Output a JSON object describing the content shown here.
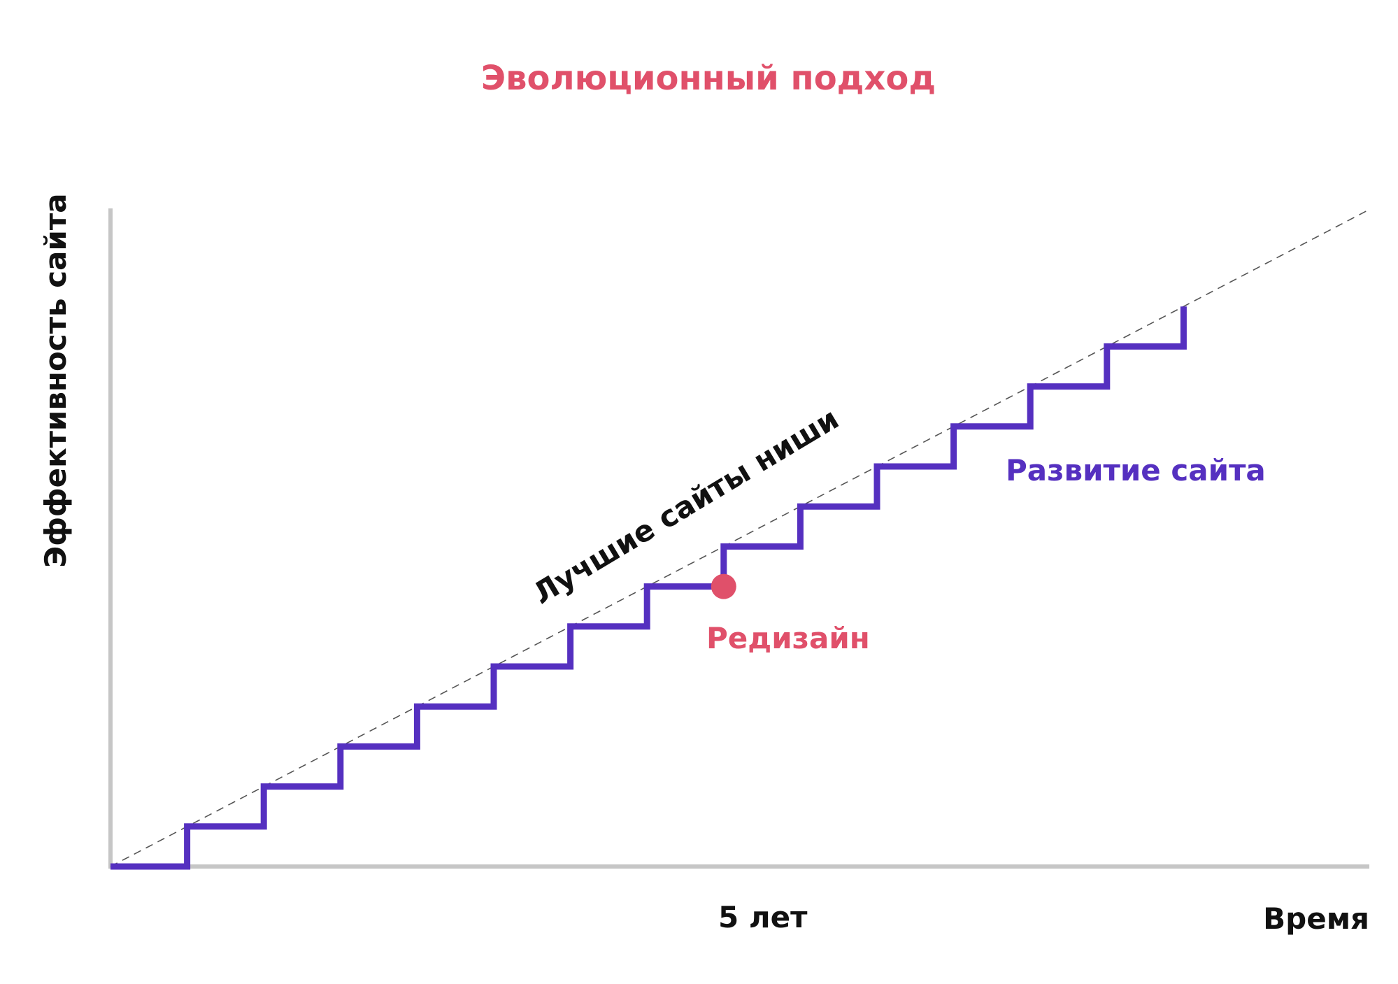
{
  "colors": {
    "title": "#e0506a",
    "axis": "#c6c6c6",
    "text": "#111111",
    "trend": "#555555",
    "steps": "#5530c0",
    "highlight": "#e0506a"
  },
  "chart_data": {
    "type": "line",
    "title": "Эволюционный подход",
    "ylabel": "Эффективность сайта",
    "xlabel": "Время",
    "xtick_label": "5 лет",
    "x_tick_at": 8,
    "xlim": [
      0,
      16.6
    ],
    "ylim": [
      0,
      16.6
    ],
    "grid": false,
    "legend": "none",
    "series": [
      {
        "name": "Развитие сайта",
        "style": "step",
        "step_heights": [
          0,
          1,
          2,
          3,
          4,
          5,
          6,
          7,
          8,
          9,
          10,
          11,
          12,
          13
        ],
        "end_value": 14
      },
      {
        "name": "Лучшие сайты ниши",
        "style": "dashed",
        "x": [
          0,
          16.4
        ],
        "y": [
          0,
          16.4
        ]
      }
    ],
    "annotations": [
      {
        "label": "Редизайн",
        "x": 8,
        "y": 7
      }
    ]
  }
}
